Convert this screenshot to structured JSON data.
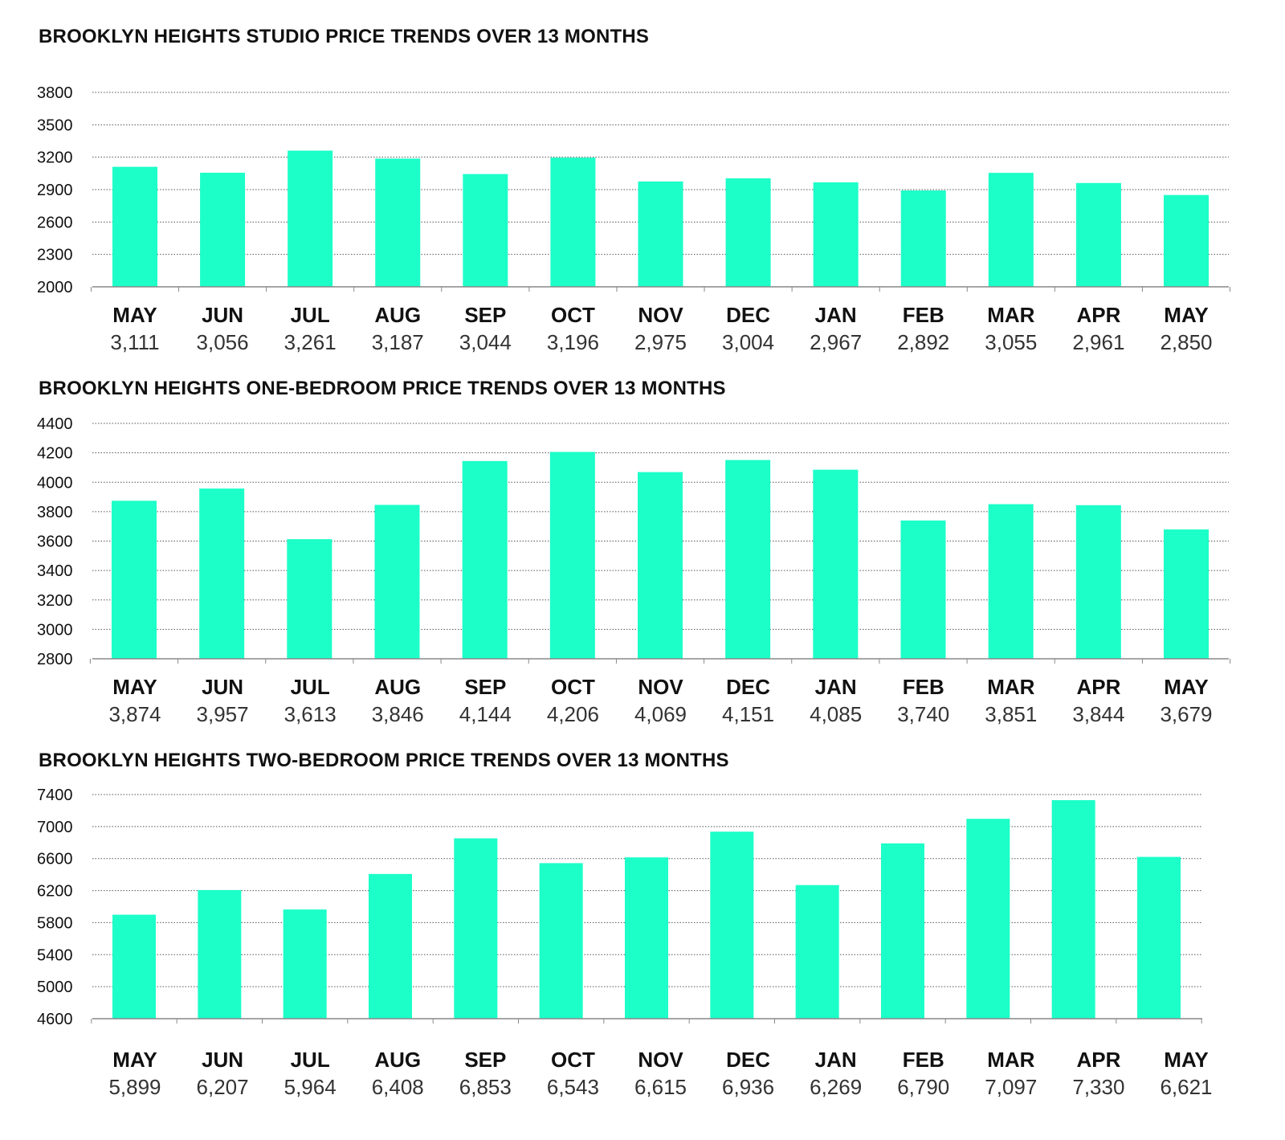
{
  "chart_data": [
    {
      "type": "bar",
      "title": "BROOKLYN HEIGHTS STUDIO PRICE TRENDS OVER 13 MONTHS",
      "categories": [
        "MAY",
        "JUN",
        "JUL",
        "AUG",
        "SEP",
        "OCT",
        "NOV",
        "DEC",
        "JAN",
        "FEB",
        "MAR",
        "APR",
        "MAY"
      ],
      "values": [
        3111,
        3056,
        3261,
        3187,
        3044,
        3196,
        2975,
        3004,
        2967,
        2892,
        3055,
        2961,
        2850
      ],
      "value_labels": [
        "3,111",
        "3,056",
        "3,261",
        "3,187",
        "3,044",
        "3,196",
        "2,975",
        "3,004",
        "2,967",
        "2,892",
        "3,055",
        "2,961",
        "2,850"
      ],
      "yticks": [
        2000,
        2300,
        2600,
        2900,
        3200,
        3500,
        3800
      ],
      "ylim": [
        2000,
        3800
      ],
      "bar_color": "#1cffc8",
      "grid": true
    },
    {
      "type": "bar",
      "title": "BROOKLYN HEIGHTS ONE-BEDROOM PRICE TRENDS OVER 13 MONTHS",
      "categories": [
        "MAY",
        "JUN",
        "JUL",
        "AUG",
        "SEP",
        "OCT",
        "NOV",
        "DEC",
        "JAN",
        "FEB",
        "MAR",
        "APR",
        "MAY"
      ],
      "values": [
        3874,
        3957,
        3613,
        3846,
        4144,
        4206,
        4069,
        4151,
        4085,
        3740,
        3851,
        3844,
        3679
      ],
      "value_labels": [
        "3,874",
        "3,957",
        "3,613",
        "3,846",
        "4,144",
        "4,206",
        "4,069",
        "4,151",
        "4,085",
        "3,740",
        "3,851",
        "3,844",
        "3,679"
      ],
      "yticks": [
        2800,
        3000,
        3200,
        3400,
        3600,
        3800,
        4000,
        4200,
        4400
      ],
      "ylim": [
        2800,
        4400
      ],
      "bar_color": "#1cffc8",
      "grid": true
    },
    {
      "type": "bar",
      "title": "BROOKLYN HEIGHTS TWO-BEDROOM PRICE TRENDS OVER 13 MONTHS",
      "categories": [
        "MAY",
        "JUN",
        "JUL",
        "AUG",
        "SEP",
        "OCT",
        "NOV",
        "DEC",
        "JAN",
        "FEB",
        "MAR",
        "APR",
        "MAY"
      ],
      "values": [
        5899,
        6207,
        5964,
        6408,
        6853,
        6543,
        6615,
        6936,
        6269,
        6790,
        7097,
        7330,
        6621
      ],
      "value_labels": [
        "5,899",
        "6,207",
        "5,964",
        "6,408",
        "6,853",
        "6,543",
        "6,615",
        "6,936",
        "6,269",
        "6,790",
        "7,097",
        "7,330",
        "6,621"
      ],
      "yticks": [
        4600,
        5000,
        5400,
        5800,
        6200,
        6600,
        7000,
        7400
      ],
      "ylim": [
        4600,
        7400
      ],
      "bar_color": "#1cffc8",
      "grid": true
    }
  ]
}
